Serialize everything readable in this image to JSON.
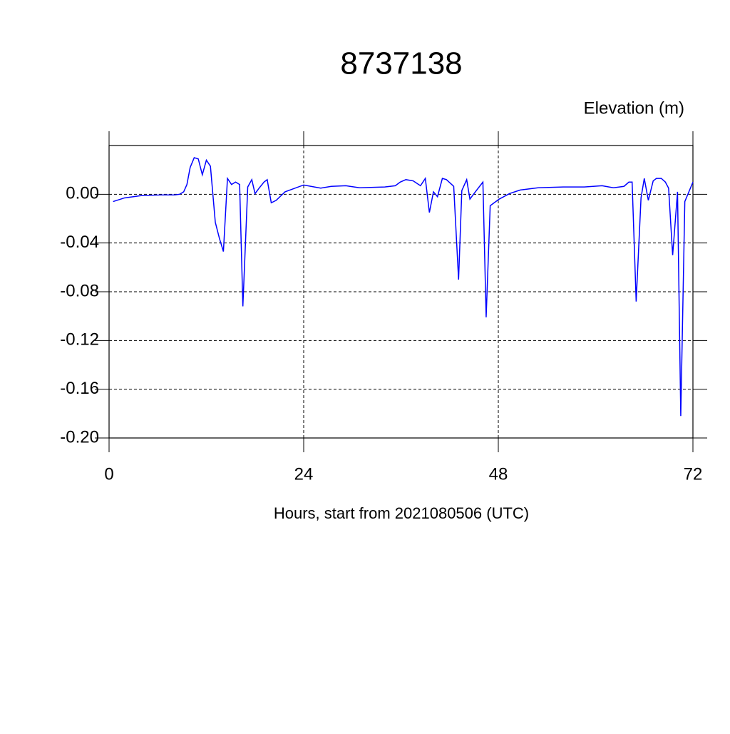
{
  "chart_data": {
    "type": "line",
    "title": "8737138",
    "y_label": "Elevation (m)",
    "x_label": "Hours, start from 2021080506 (UTC)",
    "xlim": [
      0,
      72
    ],
    "xticks": [
      0,
      24,
      48,
      72
    ],
    "ylim": [
      -0.2,
      0.04
    ],
    "yticks": [
      {
        "value": 0,
        "label": "0.00"
      },
      {
        "value": -0.04,
        "label": "-0.04"
      },
      {
        "value": -0.08,
        "label": "-0.08"
      },
      {
        "value": -0.12,
        "label": "-0.12"
      },
      {
        "value": -0.16,
        "label": "-0.16"
      },
      {
        "value": -0.2,
        "label": "-0.20"
      }
    ],
    "grid": true,
    "x": [
      0.5,
      1.9,
      4.1,
      6.8,
      8.1,
      8.7,
      9.2,
      9.6,
      10.0,
      10.5,
      11.0,
      11.5,
      12.0,
      12.5,
      13.1,
      13.6,
      14.1,
      14.6,
      15.1,
      15.6,
      16.1,
      16.5,
      17.1,
      17.6,
      18.0,
      18.5,
      19.1,
      19.5,
      20.0,
      20.6,
      21.7,
      24.0,
      26.1,
      27.4,
      29.2,
      30.9,
      34.0,
      35.3,
      35.9,
      36.6,
      37.5,
      38.4,
      39.0,
      39.5,
      40.0,
      40.5,
      41.1,
      41.6,
      42.5,
      43.1,
      43.5,
      44.1,
      44.5,
      45.0,
      46.1,
      46.5,
      47.0,
      48.1,
      49.4,
      50.7,
      52.9,
      56.0,
      58.6,
      60.8,
      62.2,
      63.5,
      64.1,
      64.5,
      65.0,
      65.6,
      66.0,
      66.5,
      67.1,
      67.5,
      68.1,
      68.6,
      69.0,
      69.5,
      70.1,
      70.5,
      71.0,
      72.0
    ],
    "series": [
      {
        "color": "#0000ff",
        "values": [
          -0.006,
          -0.003,
          -0.001,
          -0.0005,
          -0.0005,
          0.0,
          0.002,
          0.008,
          0.022,
          0.03,
          0.029,
          0.016,
          0.028,
          0.023,
          -0.023,
          -0.036,
          -0.047,
          0.013,
          0.008,
          0.01,
          0.008,
          -0.092,
          0.006,
          0.012,
          0.0005,
          0.005,
          0.01,
          0.012,
          -0.007,
          -0.005,
          0.002,
          0.0076,
          0.005,
          0.0065,
          0.007,
          0.0053,
          0.006,
          0.007,
          0.01,
          0.012,
          0.011,
          0.007,
          0.013,
          -0.015,
          0.002,
          -0.002,
          0.013,
          0.012,
          0.0065,
          -0.07,
          0.003,
          0.012,
          -0.004,
          0.0005,
          0.01,
          -0.101,
          -0.0094,
          -0.004,
          0.0006,
          0.0035,
          0.0053,
          0.006,
          0.006,
          0.007,
          0.0053,
          0.0065,
          0.01,
          0.01,
          -0.088,
          -0.003,
          0.013,
          -0.005,
          0.011,
          0.013,
          0.013,
          0.01,
          0.005,
          -0.05,
          0.002,
          -0.182,
          -0.006,
          0.01
        ]
      }
    ]
  }
}
